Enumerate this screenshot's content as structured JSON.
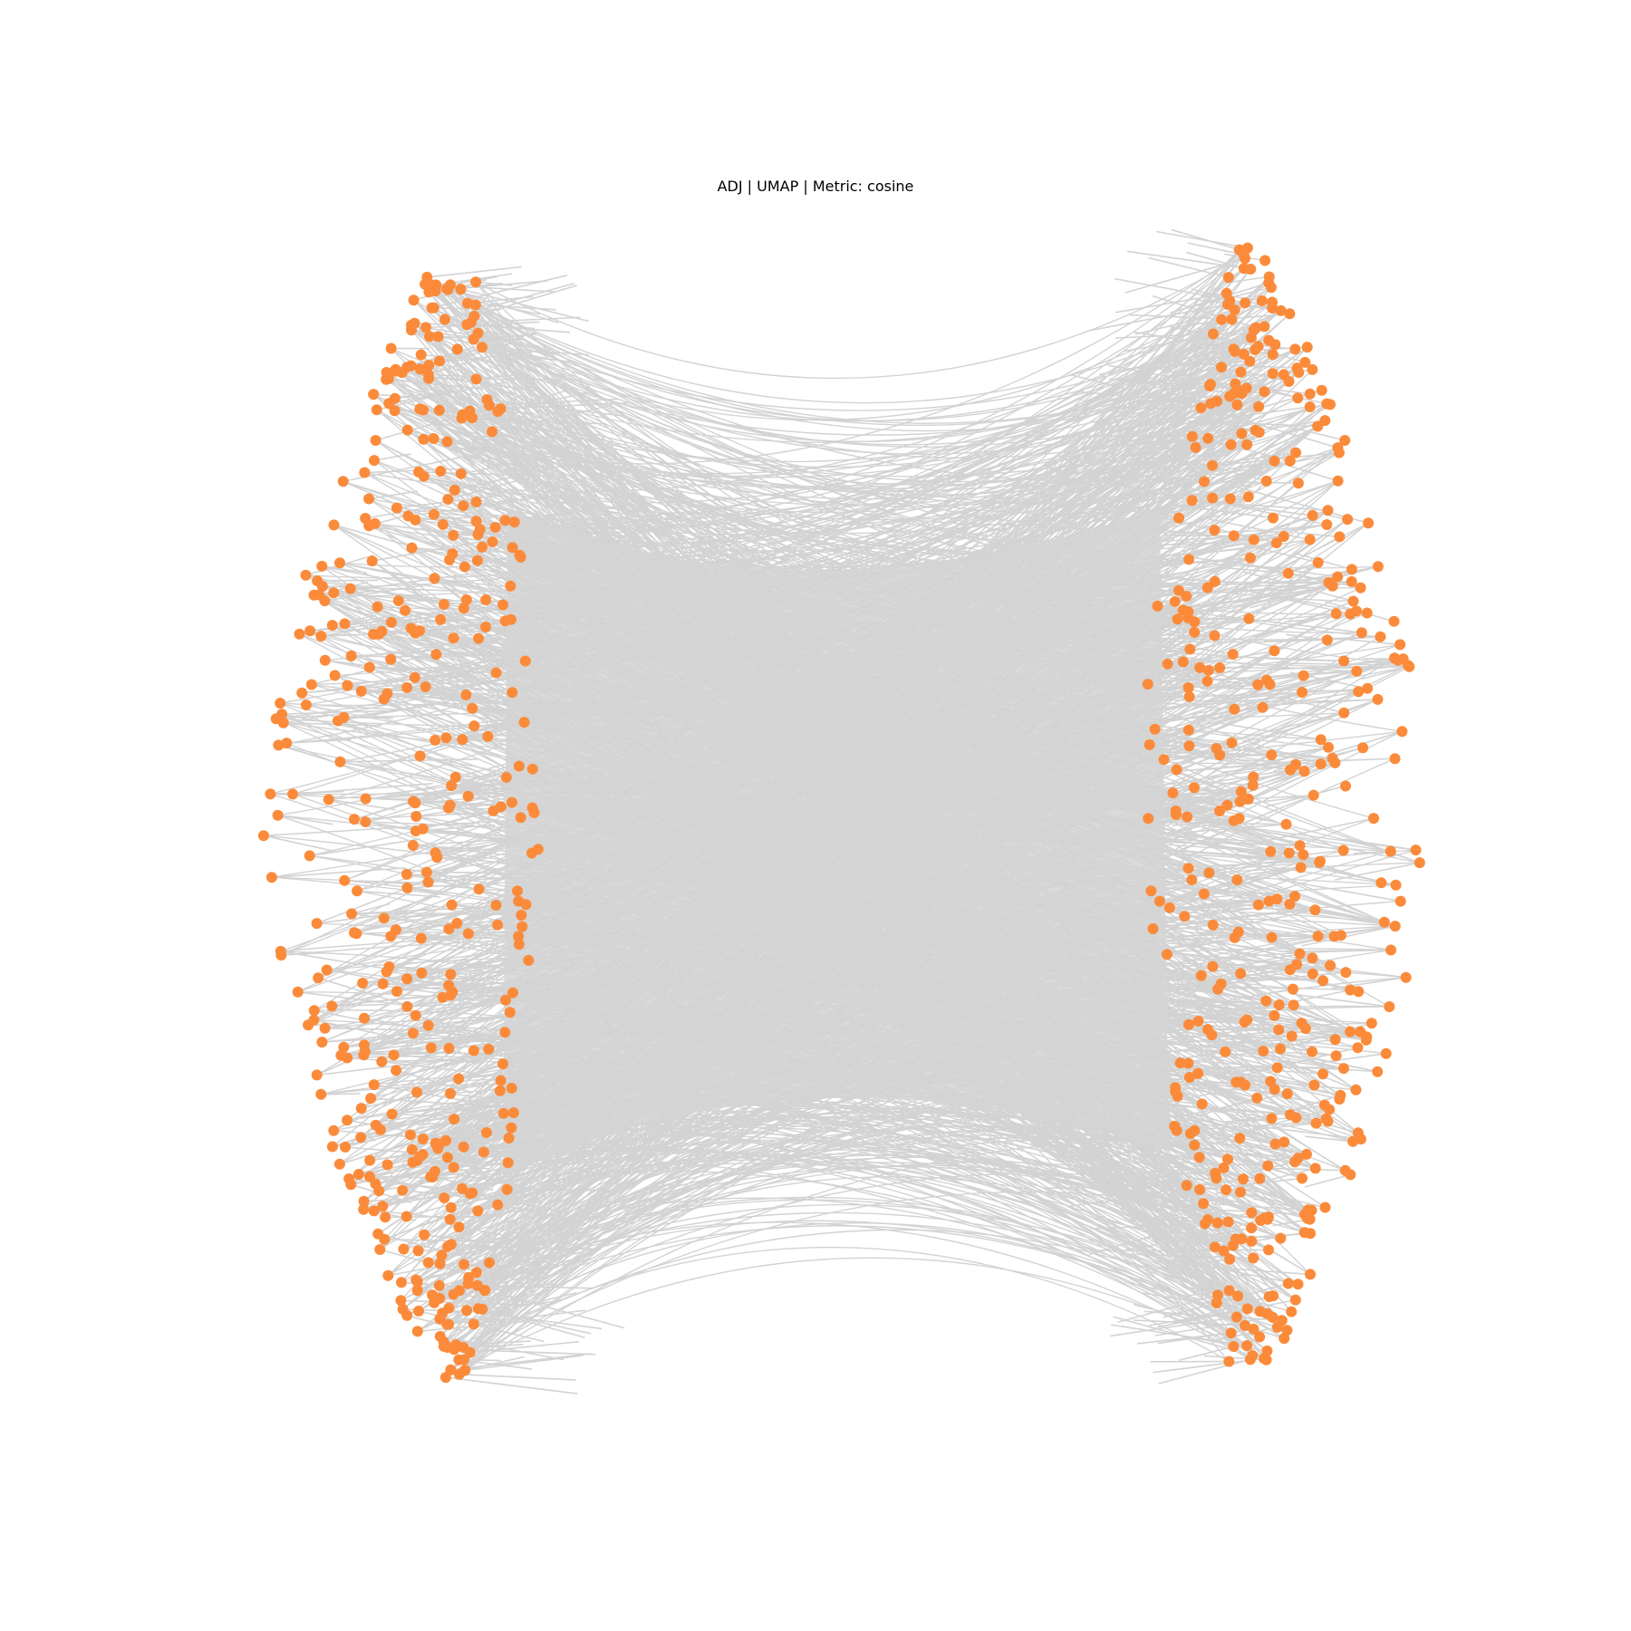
{
  "figure": {
    "title": "ADJ | UMAP | Metric: cosine"
  },
  "style": {
    "node_color": "#fb8b3a",
    "edge_color": "#d3d3d3",
    "background": "#ffffff"
  },
  "graph": {
    "layout": "UMAP",
    "metric": "cosine",
    "matrix": "ADJ",
    "structure": "bipartite-like network: two crescent-shaped node clusters (left and right) densely connected by cross edges",
    "left_cluster_approx_node_count": 420,
    "right_cluster_approx_node_count": 420
  }
}
